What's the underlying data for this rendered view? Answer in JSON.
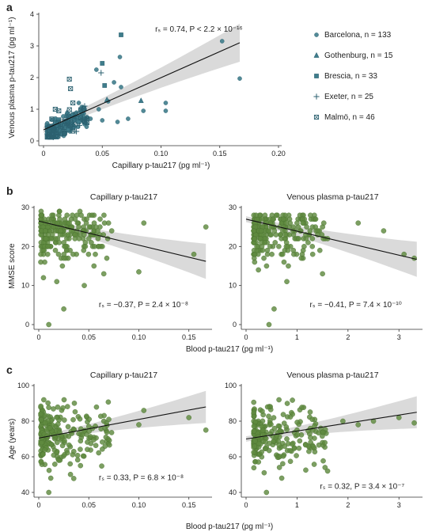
{
  "figure": {
    "colors": {
      "teal": "#3f7d8c",
      "teal_dark": "#2c6170",
      "green": "#5f8a3f",
      "green_dark": "#4b7330",
      "band": "#d4d4d4",
      "line": "#111111"
    }
  },
  "chart_data": [
    {
      "id": "a",
      "panel_label": "a",
      "type": "scatter",
      "title": "",
      "xlabel": "Capillary p-tau217 (pg ml⁻¹)",
      "ylabel": "Venous plasma p-tau217 (pg ml⁻¹)",
      "xlim": [
        0,
        0.2
      ],
      "ylim": [
        0,
        4
      ],
      "xticks": [
        "0",
        "0.05",
        "0.10",
        "0.15",
        "0.20"
      ],
      "yticks": [
        "0",
        "1",
        "2",
        "3",
        "4"
      ],
      "annotation": "rₛ = 0.74, P < 2.2 × 10⁻¹⁶",
      "fit": {
        "x": [
          0,
          0.167
        ],
        "y": [
          0.35,
          3.1
        ]
      },
      "legend_position": "right",
      "series": [
        {
          "name": "Barcelona, n = 133",
          "marker": "circle",
          "n": 133,
          "sample_points": [
            [
              0.152,
              3.15
            ],
            [
              0.167,
              1.97
            ],
            [
              0.065,
              2.65
            ],
            [
              0.045,
              2.25
            ],
            [
              0.06,
              1.85
            ],
            [
              0.066,
              1.7
            ],
            [
              0.104,
              1.2
            ],
            [
              0.104,
              0.95
            ],
            [
              0.085,
              0.95
            ],
            [
              0.072,
              0.7
            ],
            [
              0.063,
              0.6
            ],
            [
              0.05,
              0.65
            ],
            [
              0.04,
              0.7
            ],
            [
              0.035,
              1.0
            ],
            [
              0.03,
              1.2
            ],
            [
              0.055,
              1.25
            ],
            [
              0.047,
              1.0
            ]
          ]
        },
        {
          "name": "Gothenburg, n = 15",
          "marker": "triangle",
          "n": 15,
          "sample_points": [
            [
              0.083,
              1.27
            ],
            [
              0.054,
              1.3
            ],
            [
              0.02,
              0.9
            ],
            [
              0.015,
              0.5
            ]
          ]
        },
        {
          "name": "Brescia, n = 33",
          "marker": "square",
          "n": 33,
          "sample_points": [
            [
              0.066,
              3.35
            ],
            [
              0.05,
              2.45
            ],
            [
              0.052,
              1.75
            ],
            [
              0.03,
              0.6
            ],
            [
              0.025,
              0.8
            ]
          ]
        },
        {
          "name": "Exeter, n = 25",
          "marker": "plus",
          "n": 25,
          "sample_points": [
            [
              0.049,
              2.15
            ],
            [
              0.035,
              1.1
            ],
            [
              0.02,
              0.5
            ],
            [
              0.028,
              0.3
            ]
          ]
        },
        {
          "name": "Malmö, n = 46",
          "marker": "boxcross",
          "n": 46,
          "sample_points": [
            [
              0.022,
              1.95
            ],
            [
              0.023,
              1.65
            ],
            [
              0.025,
              1.2
            ],
            [
              0.01,
              1.0
            ],
            [
              0.013,
              0.95
            ],
            [
              0.005,
              0.45
            ],
            [
              0.021,
              0.6
            ],
            [
              0.018,
              0.25
            ]
          ]
        }
      ]
    },
    {
      "id": "b1",
      "panel_label": "b",
      "type": "scatter",
      "title": "Capillary p-tau217",
      "xlabel": "",
      "ylabel": "MMSE score",
      "xlim": [
        0,
        0.17
      ],
      "ylim": [
        0,
        30
      ],
      "xticks": [
        "0",
        "0.05",
        "0.10",
        "0.15"
      ],
      "yticks": [
        "0",
        "10",
        "20",
        "30"
      ],
      "annotation": "rₛ = −0.37, P = 2.4 × 10⁻⁸",
      "fit": {
        "x": [
          0,
          0.167
        ],
        "y": [
          26.5,
          16.2
        ]
      },
      "sample_points": [
        [
          0.167,
          25
        ],
        [
          0.155,
          18
        ],
        [
          0.105,
          26
        ],
        [
          0.1,
          13.5
        ],
        [
          0.065,
          13
        ],
        [
          0.068,
          17
        ],
        [
          0.025,
          4
        ],
        [
          0.018,
          11
        ],
        [
          0.01,
          0
        ],
        [
          0.06,
          20
        ],
        [
          0.04,
          25
        ],
        [
          0.05,
          22
        ]
      ]
    },
    {
      "id": "b2",
      "panel_label": "",
      "type": "scatter",
      "title": "Venous plasma p-tau217",
      "xlabel": "",
      "ylabel": "",
      "xlim": [
        0,
        3.4
      ],
      "ylim": [
        0,
        30
      ],
      "xticks": [
        "0",
        "1",
        "2",
        "3"
      ],
      "yticks": [
        "0",
        "10",
        "20",
        "30"
      ],
      "annotation": "rₛ = −0.41, P = 7.4 × 10⁻¹⁰",
      "fit": {
        "x": [
          0,
          3.35
        ],
        "y": [
          27,
          16.7
        ]
      },
      "sample_points": [
        [
          3.3,
          17
        ],
        [
          3.1,
          18
        ],
        [
          2.7,
          24
        ],
        [
          2.2,
          26
        ],
        [
          1.6,
          22
        ],
        [
          1.3,
          20
        ],
        [
          1.5,
          13
        ],
        [
          0.55,
          4
        ],
        [
          0.45,
          0
        ],
        [
          0.8,
          11
        ],
        [
          0.35,
          17
        ],
        [
          1.0,
          26
        ]
      ]
    },
    {
      "id": "c1",
      "panel_label": "c",
      "type": "scatter",
      "title": "Capillary p-tau217",
      "xlabel": "",
      "ylabel": "Age (years)",
      "xlim": [
        0,
        0.17
      ],
      "ylim": [
        40,
        100
      ],
      "xticks": [
        "0",
        "0.05",
        "0.10",
        "0.15"
      ],
      "yticks": [
        "40",
        "60",
        "80",
        "100"
      ],
      "annotation": "rₛ = 0.33, P = 6.8 × 10⁻⁸",
      "fit": {
        "x": [
          0,
          0.167
        ],
        "y": [
          70.5,
          88
        ]
      },
      "sample_points": [
        [
          0.167,
          75
        ],
        [
          0.15,
          82
        ],
        [
          0.1,
          78
        ],
        [
          0.105,
          86
        ],
        [
          0.065,
          80
        ],
        [
          0.07,
          81
        ],
        [
          0.01,
          40
        ],
        [
          0.012,
          48
        ],
        [
          0.02,
          58
        ],
        [
          0.035,
          63
        ],
        [
          0.04,
          73
        ],
        [
          0.05,
          77
        ]
      ]
    },
    {
      "id": "c2",
      "panel_label": "",
      "type": "scatter",
      "title": "Venous plasma p-tau217",
      "xlabel": "",
      "ylabel": "",
      "xlim": [
        0,
        3.4
      ],
      "ylim": [
        40,
        100
      ],
      "xticks": [
        "0",
        "1",
        "2",
        "3"
      ],
      "yticks": [
        "40",
        "60",
        "80",
        "100"
      ],
      "annotation": "rₛ = 0.32, P = 3.4 × 10⁻⁷",
      "fit": {
        "x": [
          0,
          3.35
        ],
        "y": [
          70,
          85
        ]
      },
      "sample_points": [
        [
          3.3,
          79
        ],
        [
          3.0,
          82
        ],
        [
          2.5,
          80
        ],
        [
          2.2,
          78
        ],
        [
          1.55,
          54
        ],
        [
          1.6,
          52
        ],
        [
          0.7,
          48
        ],
        [
          0.4,
          40
        ],
        [
          1.0,
          75
        ],
        [
          1.3,
          81
        ],
        [
          0.8,
          70
        ],
        [
          1.9,
          80
        ]
      ]
    }
  ],
  "shared_xlabel": "Blood p-tau217 (pg ml⁻¹)"
}
